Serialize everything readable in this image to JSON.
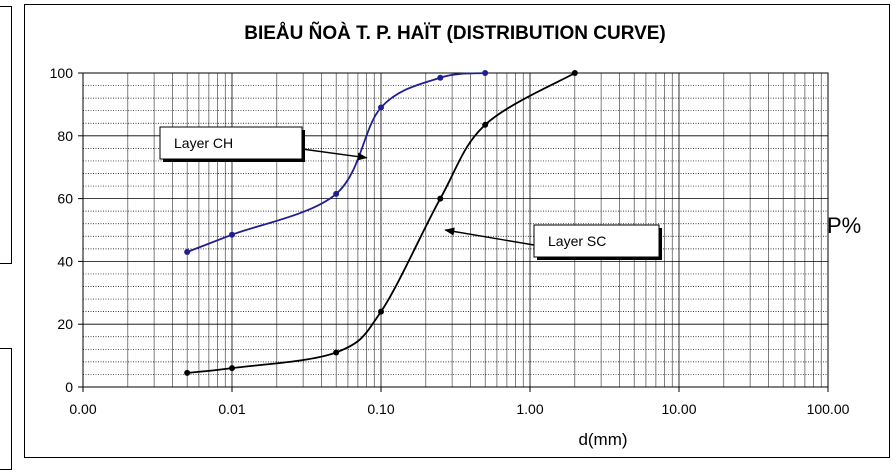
{
  "chart_data": {
    "type": "line",
    "title": "BIEÅU ÑOÀ T. P. HAÏT (DISTRIBUTION  CURVE)",
    "xlabel": "d(mm)",
    "ylabel": "P%",
    "x_scale": "log",
    "xlim": [
      0.001,
      100
    ],
    "ylim": [
      0,
      100
    ],
    "x_ticks": [
      "0.00",
      "0.01",
      "0.10",
      "1.00",
      "10.00",
      "100.00"
    ],
    "y_ticks": [
      "0",
      "20",
      "40",
      "60",
      "80",
      "100"
    ],
    "grid": true,
    "series": [
      {
        "name": "Layer CH",
        "color": "#1f1f8f",
        "x": [
          0.005,
          0.01,
          0.05,
          0.1,
          0.25,
          0.5
        ],
        "y": [
          43,
          48.5,
          61.5,
          89,
          98.5,
          100
        ]
      },
      {
        "name": "Layer SC",
        "color": "#000000",
        "x": [
          0.005,
          0.01,
          0.05,
          0.1,
          0.25,
          0.5,
          2
        ],
        "y": [
          4.5,
          6,
          11,
          24,
          60,
          83.5,
          100
        ]
      }
    ],
    "annotations": [
      {
        "text": "Layer CH",
        "series": "Layer CH",
        "points_to": {
          "x": 0.08,
          "y": 73
        }
      },
      {
        "text": "Layer SC",
        "series": "Layer SC",
        "points_to": {
          "x": 0.27,
          "y": 50
        }
      }
    ]
  }
}
